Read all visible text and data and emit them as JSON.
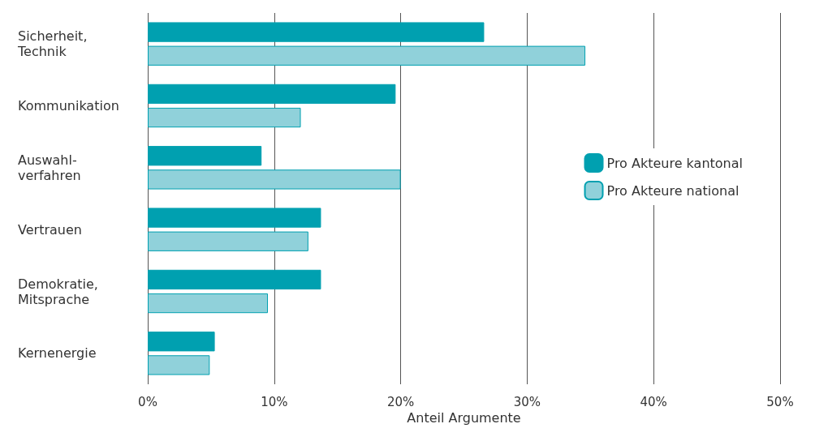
{
  "chart_data": {
    "type": "bar",
    "orientation": "horizontal",
    "xlabel": "Anteil Argumente",
    "categories": [
      "Sicherheit,\nTechnik",
      "Kommunikation",
      "Auswahl-\nverfahren",
      "Vertrauen",
      "Demokratie,\nMitsprache",
      "Kernenergie"
    ],
    "series": [
      {
        "name": "Pro Akteure kantonal",
        "color": "#00a0b0",
        "values": [
          26.6,
          19.6,
          9.0,
          13.7,
          13.7,
          5.3
        ]
      },
      {
        "name": "Pro Akteure national",
        "color": "#90d1da",
        "values": [
          34.6,
          12.1,
          20.0,
          12.7,
          9.5,
          4.9
        ]
      }
    ],
    "xlim": [
      0,
      50
    ],
    "xticks": [
      {
        "value": 0,
        "label": "0%"
      },
      {
        "value": 10,
        "label": "10%"
      },
      {
        "value": 20,
        "label": "20%"
      },
      {
        "value": 30,
        "label": "30%"
      },
      {
        "value": 40,
        "label": "40%"
      },
      {
        "value": 50,
        "label": "50%"
      }
    ],
    "grid": "x",
    "legend": "right"
  }
}
